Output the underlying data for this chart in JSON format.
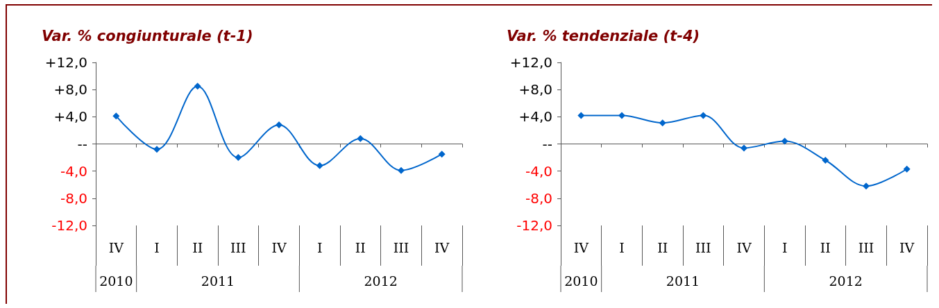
{
  "chart_data": [
    {
      "type": "line",
      "title": "Var. % congiunturale (t-1)",
      "categories": [
        "IV",
        "I",
        "II",
        "III",
        "IV",
        "I",
        "II",
        "III",
        "IV"
      ],
      "series": [
        {
          "color": "#0066cc",
          "values": [
            4.1,
            -0.8,
            8.5,
            -2.0,
            2.8,
            -3.2,
            0.8,
            -3.9,
            -1.5
          ]
        }
      ],
      "ylim": [
        -12,
        12
      ],
      "yticks": [
        {
          "value": -12,
          "label": "-12,0"
        },
        {
          "value": -8,
          "label": "-8,0"
        },
        {
          "value": -4,
          "label": "-4,0"
        },
        {
          "value": 0,
          "label": "--"
        },
        {
          "value": 4,
          "label": "+4,0"
        },
        {
          "value": 8,
          "label": "+8,0"
        },
        {
          "value": 12,
          "label": "+12,0"
        }
      ],
      "annotations": [
        "2010",
        "2011",
        "2012"
      ],
      "marker": "diamond",
      "line_style": "solid"
    },
    {
      "type": "line",
      "title": "Var. % tendenziale (t-4)",
      "categories": [
        "IV",
        "I",
        "II",
        "III",
        "IV",
        "I",
        "II",
        "III",
        "IV"
      ],
      "series": [
        {
          "color": "#0066cc",
          "values": [
            4.2,
            4.2,
            3.1,
            4.2,
            -0.6,
            0.4,
            -2.4,
            -6.2,
            -3.7
          ]
        }
      ],
      "ylim": [
        -12,
        12
      ],
      "yticks": [
        {
          "value": -12,
          "label": "-12,0"
        },
        {
          "value": -8,
          "label": "-8,0"
        },
        {
          "value": -4,
          "label": "-4,0"
        },
        {
          "value": 0,
          "label": "--"
        },
        {
          "value": 4,
          "label": "+4,0"
        },
        {
          "value": 8,
          "label": "+8,0"
        },
        {
          "value": 12,
          "label": "+12,0"
        }
      ],
      "annotations": [
        "2010",
        "2011",
        "2012"
      ],
      "marker": "diamond",
      "line_style": "solid"
    }
  ]
}
